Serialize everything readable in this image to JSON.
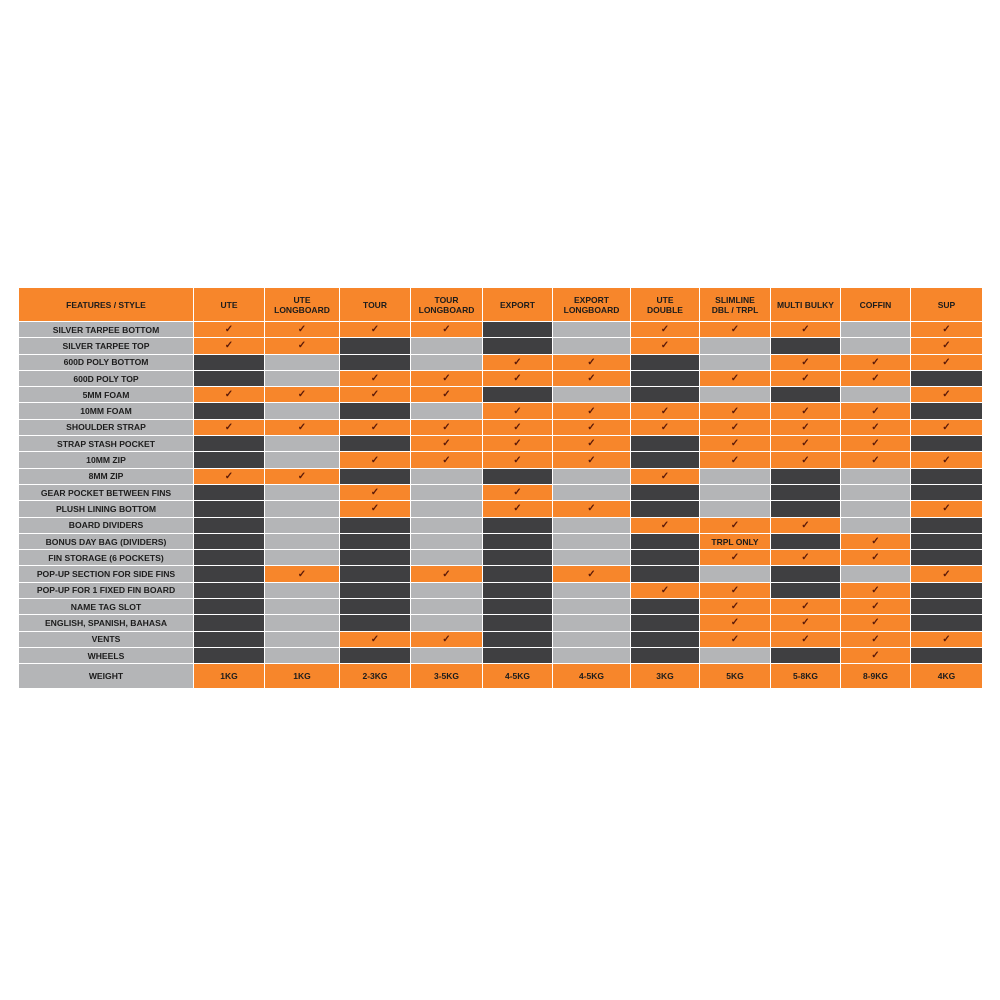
{
  "colors": {
    "accent": "#f7862b",
    "dark": "#3f3f41",
    "grey": "#b4b5b7",
    "check": "#5c1a08"
  },
  "check_icon": "checkmark-icon",
  "check_symbol": "✓",
  "header": {
    "feature_label": "FEATURES / STYLE",
    "columns": [
      "UTE",
      "UTE\nLONGBOARD",
      "TOUR",
      "TOUR\nLONGBOARD",
      "EXPORT",
      "EXPORT\nLONGBOARD",
      "UTE\nDOUBLE",
      "SLIMLINE\nDBL / TRPL",
      "MULTI BULKY",
      "COFFIN",
      "SUP"
    ]
  },
  "rows": [
    {
      "feature": "SILVER TARPEE BOTTOM",
      "values": [
        1,
        1,
        1,
        1,
        0,
        0,
        1,
        1,
        1,
        0,
        1
      ]
    },
    {
      "feature": "SILVER TARPEE TOP",
      "values": [
        1,
        1,
        0,
        0,
        0,
        0,
        1,
        0,
        0,
        0,
        1
      ]
    },
    {
      "feature": "600D POLY BOTTOM",
      "values": [
        0,
        0,
        0,
        0,
        1,
        1,
        0,
        0,
        1,
        1,
        1
      ]
    },
    {
      "feature": "600D POLY TOP",
      "values": [
        0,
        0,
        1,
        1,
        1,
        1,
        0,
        1,
        1,
        1,
        0
      ]
    },
    {
      "feature": "5MM FOAM",
      "values": [
        1,
        1,
        1,
        1,
        0,
        0,
        0,
        0,
        0,
        0,
        1
      ]
    },
    {
      "feature": "10MM FOAM",
      "values": [
        0,
        0,
        0,
        0,
        1,
        1,
        1,
        1,
        1,
        1,
        0
      ]
    },
    {
      "feature": "SHOULDER STRAP",
      "values": [
        1,
        1,
        1,
        1,
        1,
        1,
        1,
        1,
        1,
        1,
        1
      ]
    },
    {
      "feature": "STRAP STASH POCKET",
      "values": [
        0,
        0,
        0,
        1,
        1,
        1,
        0,
        1,
        1,
        1,
        0
      ]
    },
    {
      "feature": "10MM ZIP",
      "values": [
        0,
        0,
        1,
        1,
        1,
        1,
        0,
        1,
        1,
        1,
        1
      ]
    },
    {
      "feature": "8MM ZIP",
      "values": [
        1,
        1,
        0,
        0,
        0,
        0,
        1,
        0,
        0,
        0,
        0
      ]
    },
    {
      "feature": "GEAR POCKET BETWEEN FINS",
      "values": [
        0,
        0,
        1,
        0,
        1,
        0,
        0,
        0,
        0,
        0,
        0
      ]
    },
    {
      "feature": "PLUSH LINING BOTTOM",
      "values": [
        0,
        0,
        1,
        0,
        1,
        1,
        0,
        0,
        0,
        0,
        1
      ]
    },
    {
      "feature": "BOARD DIVIDERS",
      "values": [
        0,
        0,
        0,
        0,
        0,
        0,
        1,
        1,
        1,
        0,
        0
      ]
    },
    {
      "feature": "BONUS DAY BAG (DIVIDERS)",
      "values": [
        0,
        0,
        0,
        0,
        0,
        0,
        0,
        "TRPL ONLY",
        0,
        1,
        0
      ]
    },
    {
      "feature": "FIN STORAGE (6 POCKETS)",
      "values": [
        0,
        0,
        0,
        0,
        0,
        0,
        0,
        1,
        1,
        1,
        0
      ]
    },
    {
      "feature": "POP-UP SECTION FOR SIDE FINS",
      "values": [
        0,
        1,
        0,
        1,
        0,
        1,
        0,
        0,
        0,
        0,
        1
      ]
    },
    {
      "feature": "POP-UP FOR 1 FIXED FIN BOARD",
      "values": [
        0,
        0,
        0,
        0,
        0,
        0,
        1,
        1,
        0,
        1,
        0
      ]
    },
    {
      "feature": "NAME TAG SLOT",
      "values": [
        0,
        0,
        0,
        0,
        0,
        0,
        0,
        1,
        1,
        1,
        0
      ]
    },
    {
      "feature": "ENGLISH, SPANISH, BAHASA",
      "values": [
        0,
        0,
        0,
        0,
        0,
        0,
        0,
        1,
        1,
        1,
        0
      ]
    },
    {
      "feature": "VENTS",
      "values": [
        0,
        0,
        1,
        1,
        0,
        0,
        0,
        1,
        1,
        1,
        1
      ]
    },
    {
      "feature": "WHEELS",
      "values": [
        0,
        0,
        0,
        0,
        0,
        0,
        0,
        0,
        0,
        1,
        0
      ]
    }
  ],
  "weight": {
    "label": "WEIGHT",
    "values": [
      "1KG",
      "1KG",
      "2-3KG",
      "3-5KG",
      "4-5KG",
      "4-5KG",
      "3KG",
      "5KG",
      "5-8KG",
      "8-9KG",
      "4KG"
    ]
  }
}
